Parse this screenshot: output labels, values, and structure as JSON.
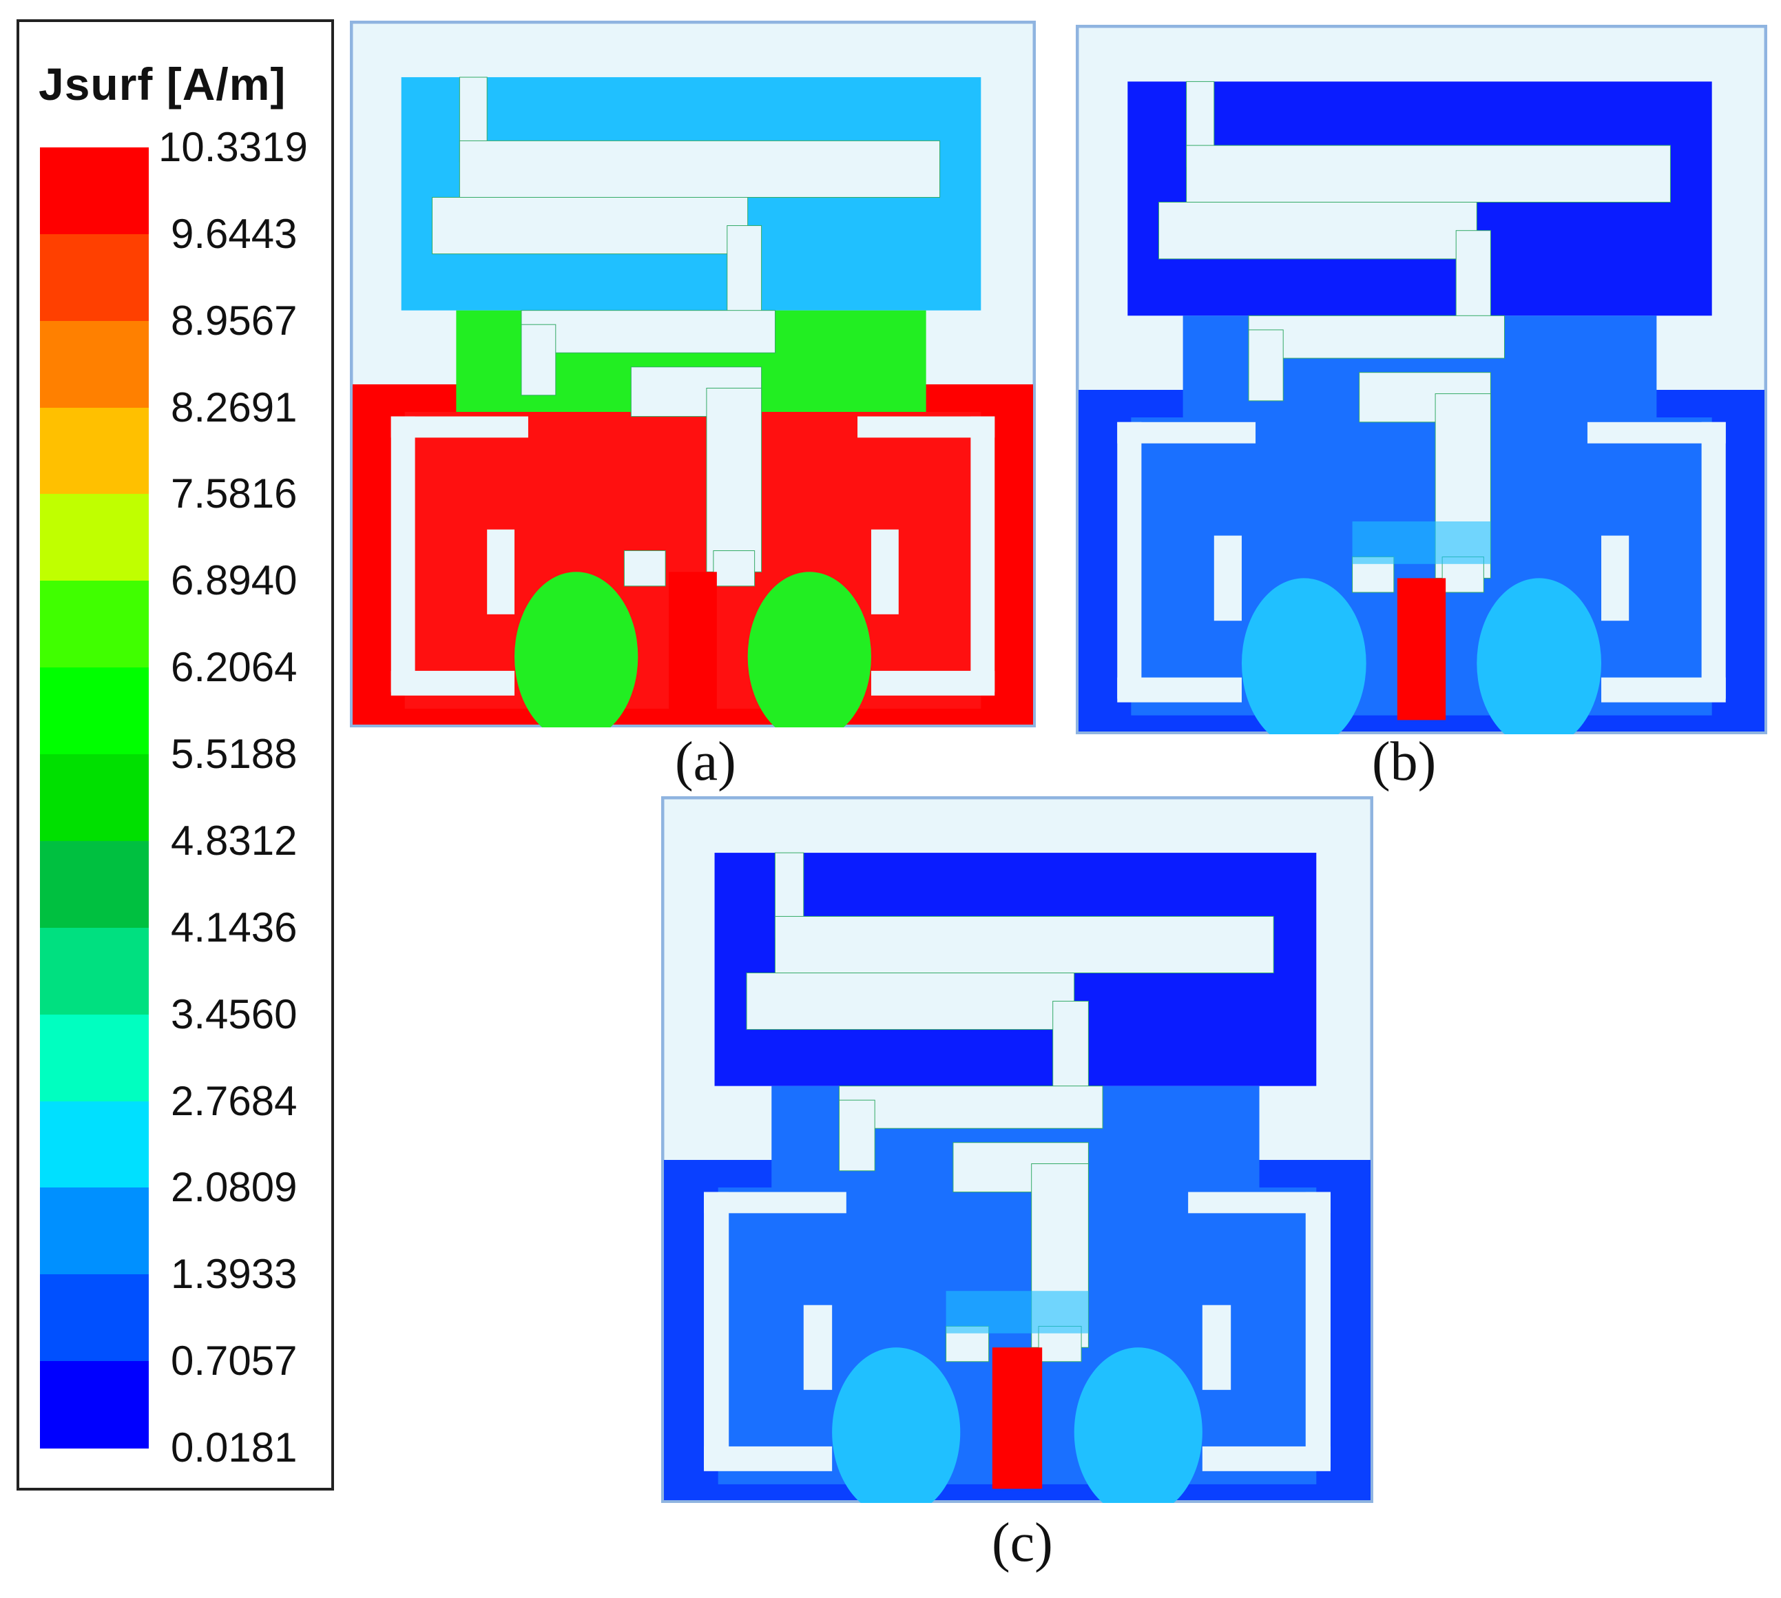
{
  "legend": {
    "title": "Jsurf [A/m]",
    "ticks": [
      "10.3319",
      "9.6443",
      "8.9567",
      "8.2691",
      "7.5816",
      "6.8940",
      "6.2064",
      "5.5188",
      "4.8312",
      "4.1436",
      "3.4560",
      "2.7684",
      "2.0809",
      "1.3933",
      "0.7057",
      "0.0181"
    ],
    "colors": [
      "#ff0000",
      "#ff4000",
      "#ff8000",
      "#ffc000",
      "#c0ff00",
      "#40ff00",
      "#00ff00",
      "#00e000",
      "#00c040",
      "#00e080",
      "#00ffc0",
      "#00e0ff",
      "#0090ff",
      "#0050ff",
      "#0000ff"
    ]
  },
  "panels": [
    {
      "id": "a",
      "caption": "(a)",
      "fill_level": "high",
      "feed_color": "#ff0000",
      "ground_color": "#ff0000"
    },
    {
      "id": "b",
      "caption": "(b)",
      "fill_level": "low",
      "feed_color": "#ff0000",
      "ground_color": "#0a3cff"
    },
    {
      "id": "c",
      "caption": "(c)",
      "fill_level": "low",
      "feed_color": "#ff0000",
      "ground_color": "#0a40ff"
    }
  ],
  "colors": {
    "substrate": "#e8f6fb",
    "panel_border": "#8fb4e0",
    "low": "#0a1cff",
    "mid_low": "#1a70ff",
    "mid": "#20c0ff",
    "green": "#22ee22",
    "yellow": "#e8f000",
    "high": "#ff1010"
  }
}
